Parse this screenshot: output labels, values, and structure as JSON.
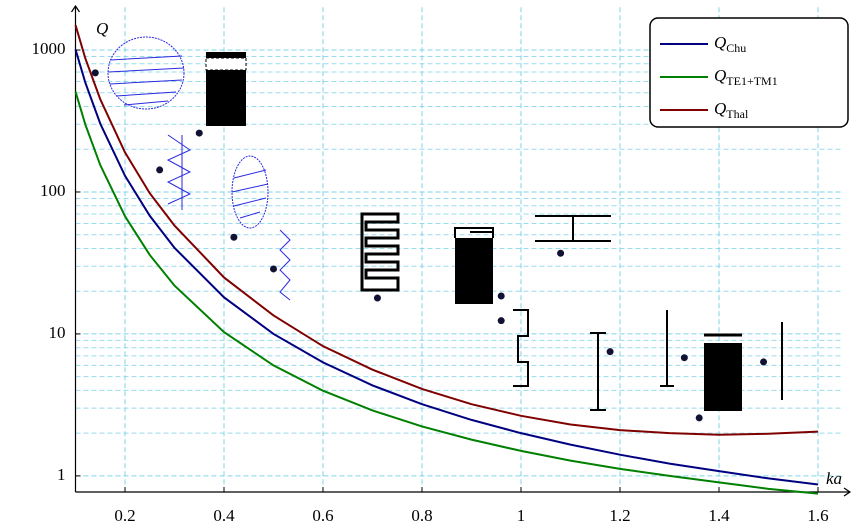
{
  "chart_data": {
    "type": "line",
    "log_y": true,
    "grid": true,
    "xlabel": "ka",
    "ylabel": "Q",
    "xlim": [
      0.1,
      1.65
    ],
    "ylim": [
      0.77,
      2000
    ],
    "xticks": [
      0.2,
      0.4,
      0.6,
      0.8,
      1,
      1.2,
      1.4,
      1.6
    ],
    "yticks": [
      1,
      10,
      100,
      1000
    ],
    "y_minor_ticks": [
      2,
      3,
      4,
      5,
      6,
      7,
      8,
      9,
      20,
      30,
      40,
      50,
      60,
      70,
      80,
      90,
      200,
      300,
      400,
      500,
      600,
      700,
      800,
      900
    ],
    "legend": "upper right",
    "x": [
      0.1,
      0.12,
      0.15,
      0.2,
      0.25,
      0.3,
      0.4,
      0.5,
      0.6,
      0.7,
      0.8,
      0.9,
      1.0,
      1.1,
      1.2,
      1.3,
      1.4,
      1.5,
      1.6
    ],
    "series": [
      {
        "name": "QChu",
        "color": "#000080",
        "values": [
          1010,
          587,
          303,
          130,
          68,
          40.4,
          18.1,
          10,
          6.3,
          4.34,
          3.2,
          2.48,
          2,
          1.66,
          1.41,
          1.22,
          1.08,
          0.96,
          0.87
        ]
      },
      {
        "name": "QTE1+TM1",
        "color": "#008000",
        "values": [
          510,
          297.7,
          154.8,
          67.5,
          36,
          21.9,
          10.3,
          6,
          3.98,
          2.89,
          2.23,
          1.8,
          1.5,
          1.28,
          1.12,
          1.0,
          0.9,
          0.81,
          0.75
        ]
      },
      {
        "name": "QThal",
        "color": "#800000",
        "values": [
          1500,
          870,
          450,
          190,
          98,
          58,
          25,
          13.5,
          8.2,
          5.6,
          4.1,
          3.2,
          2.65,
          2.3,
          2.1,
          2.0,
          1.95,
          1.98,
          2.05
        ]
      }
    ],
    "points": {
      "color": "#111133",
      "x": [
        0.14,
        0.35,
        0.27,
        0.42,
        0.5,
        0.71,
        0.96,
        0.96,
        1.08,
        1.18,
        1.33,
        1.49,
        1.36
      ],
      "values": [
        690,
        260,
        143,
        48,
        28.7,
        17.9,
        18.5,
        12.4,
        37,
        7.5,
        6.8,
        6.35,
        2.56
      ]
    }
  }
}
